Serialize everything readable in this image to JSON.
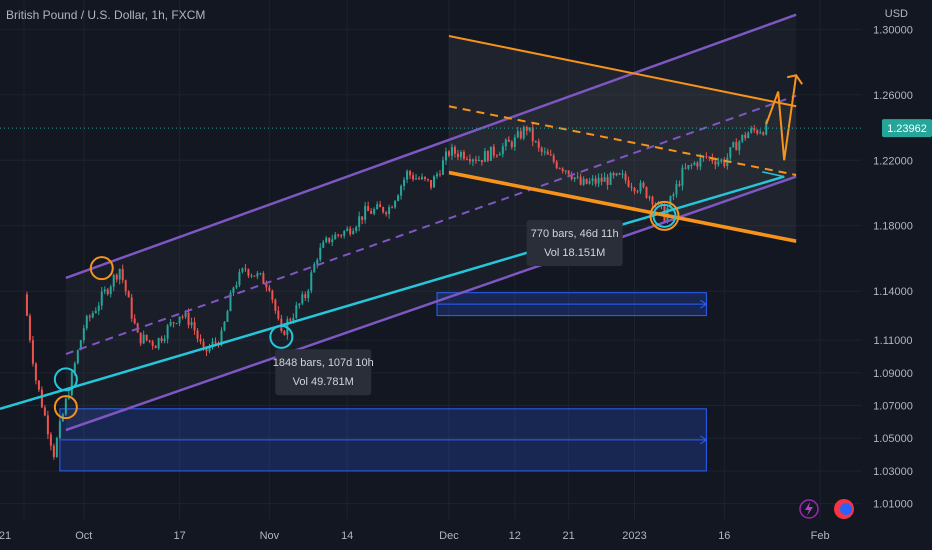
{
  "header": {
    "title": "British Pound / U.S. Dollar, 1h, FXCM",
    "currency": "USD"
  },
  "chart_data": {
    "type": "line",
    "title": "British Pound / U.S. Dollar, 1h, FXCM",
    "ylabel": "USD",
    "ylim": [
      1.0,
      1.318
    ],
    "y_ticks": [
      "1.30000",
      "1.26000",
      "1.22000",
      "1.18000",
      "1.14000",
      "1.11000",
      "1.09000",
      "1.07000",
      "1.05000",
      "1.03000",
      "1.01000"
    ],
    "y_tick_values": [
      1.3,
      1.26,
      1.22,
      1.18,
      1.14,
      1.11,
      1.09,
      1.07,
      1.05,
      1.03,
      1.01
    ],
    "x_ticks": [
      "21",
      "Oct",
      "17",
      "Nov",
      "14",
      "Dec",
      "12",
      "21",
      "2023",
      "16",
      "Feb"
    ],
    "x_tick_dates": [
      "2022-09-21",
      "2022-10-01",
      "2022-10-17",
      "2022-11-01",
      "2022-11-14",
      "2022-12-01",
      "2022-12-12",
      "2022-12-21",
      "2023-01-01",
      "2023-01-16",
      "2023-02-01"
    ],
    "last_price": "1.23962",
    "last_price_value": 1.23962,
    "series": [
      {
        "colors": {
          "up": "#26a69a",
          "down": "#ef5350"
        },
        "points": [
          [
            "2022-09-21",
            1.138
          ],
          [
            "2022-09-23",
            1.086
          ],
          [
            "2022-09-26",
            1.041
          ],
          [
            "2022-09-28",
            1.072
          ],
          [
            "2022-10-01",
            1.118
          ],
          [
            "2022-10-04",
            1.136
          ],
          [
            "2022-10-07",
            1.154
          ],
          [
            "2022-10-10",
            1.112
          ],
          [
            "2022-10-13",
            1.108
          ],
          [
            "2022-10-17",
            1.126
          ],
          [
            "2022-10-19",
            1.121
          ],
          [
            "2022-10-21",
            1.102
          ],
          [
            "2022-10-24",
            1.112
          ],
          [
            "2022-10-26",
            1.143
          ],
          [
            "2022-10-28",
            1.154
          ],
          [
            "2022-11-01",
            1.144
          ],
          [
            "2022-11-03",
            1.112
          ],
          [
            "2022-11-04",
            1.121
          ],
          [
            "2022-11-07",
            1.137
          ],
          [
            "2022-11-09",
            1.162
          ],
          [
            "2022-11-11",
            1.172
          ],
          [
            "2022-11-14",
            1.177
          ],
          [
            "2022-11-17",
            1.188
          ],
          [
            "2022-11-21",
            1.191
          ],
          [
            "2022-11-24",
            1.212
          ],
          [
            "2022-11-28",
            1.205
          ],
          [
            "2022-12-01",
            1.225
          ],
          [
            "2022-12-04",
            1.224
          ],
          [
            "2022-12-06",
            1.221
          ],
          [
            "2022-12-09",
            1.226
          ],
          [
            "2022-12-12",
            1.232
          ],
          [
            "2022-12-14",
            1.24
          ],
          [
            "2022-12-16",
            1.226
          ],
          [
            "2022-12-19",
            1.218
          ],
          [
            "2022-12-21",
            1.214
          ],
          [
            "2022-12-23",
            1.205
          ],
          [
            "2022-12-27",
            1.208
          ],
          [
            "2022-12-30",
            1.209
          ],
          [
            "2023-01-02",
            1.203
          ],
          [
            "2023-01-04",
            1.197
          ],
          [
            "2023-01-06",
            1.186
          ],
          [
            "2023-01-09",
            1.212
          ],
          [
            "2023-01-11",
            1.218
          ],
          [
            "2023-01-13",
            1.222
          ],
          [
            "2023-01-16",
            1.219
          ],
          [
            "2023-01-18",
            1.23
          ],
          [
            "2023-01-20",
            1.237
          ],
          [
            "2023-01-23",
            1.24
          ]
        ]
      }
    ],
    "markers": [
      {
        "type": "date-range",
        "bars": "1848 bars, 107d 10h",
        "vol": "Vol 49.781M",
        "from": "2022-09-27",
        "to": "2023-01-13",
        "ylow": 1.03,
        "yhigh": 1.068
      },
      {
        "type": "date-range",
        "bars": "770 bars, 46d 11h",
        "vol": "Vol 18.151M",
        "from": "2022-11-29",
        "to": "2023-01-13",
        "ylow": 1.125,
        "yhigh": 1.139
      }
    ]
  },
  "colors": {
    "background": "#131722",
    "channel": "#7e57c2",
    "trend": "#26c6da",
    "pitchfork": "#f7931a",
    "range": "#2962ff",
    "price_label": "#26a69a"
  },
  "icons": [
    "lightning-icon",
    "flag-badge-icon"
  ]
}
